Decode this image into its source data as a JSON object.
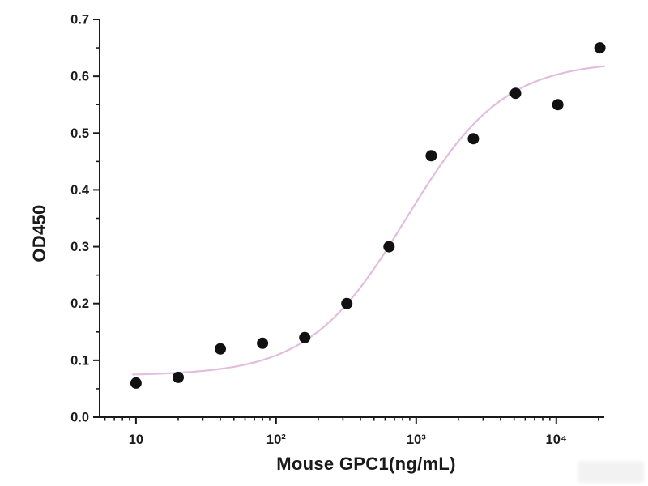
{
  "figure": {
    "background": "#ffffff"
  },
  "chart_data": {
    "type": "scatter",
    "title": "",
    "xlabel": "Mouse GPC1(ng/mL)",
    "ylabel": "OD450",
    "x_scale": "log",
    "xlim": [
      5.5,
      22000
    ],
    "ylim": [
      0,
      0.7
    ],
    "x_ticks": [
      10,
      100,
      1000,
      10000
    ],
    "x_tick_labels": [
      "10",
      "10²",
      "10³",
      "10⁴"
    ],
    "y_ticks": [
      0,
      0.1,
      0.2,
      0.3,
      0.4,
      0.5,
      0.6,
      0.7
    ],
    "y_tick_labels": [
      "0.0",
      "0.1",
      "0.2",
      "0.3",
      "0.4",
      "0.5",
      "0.6",
      "0.7"
    ],
    "y_minor_step": 0.05,
    "grid": false,
    "legend": "none",
    "x": [
      10,
      20,
      40,
      80,
      160,
      320,
      640,
      1280,
      2560,
      5120,
      10240,
      20480
    ],
    "y": [
      0.06,
      0.07,
      0.12,
      0.13,
      0.14,
      0.2,
      0.3,
      0.46,
      0.49,
      0.57,
      0.55,
      0.65
    ],
    "point_color": "#111111",
    "point_radius": 7,
    "axis_color": "#1a1a1a",
    "fit_curve": {
      "model": "4PL",
      "bottom": 0.073,
      "top": 0.627,
      "ec50": 850,
      "hill": 1.25,
      "x_range": [
        9.5,
        22000
      ],
      "color": "#e2bede"
    }
  }
}
